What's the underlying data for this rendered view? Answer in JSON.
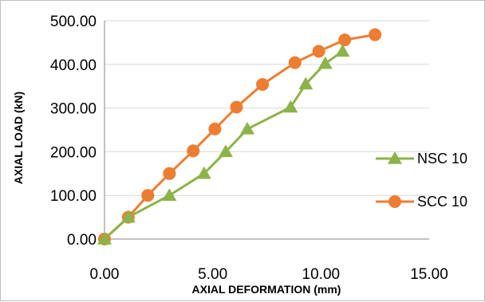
{
  "chart_data": {
    "type": "line",
    "title": "",
    "xlabel": "AXIAL DEFORMATION (mm)",
    "ylabel": "AXIAL LOAD (kN)",
    "xlim": [
      0,
      15
    ],
    "ylim": [
      0,
      500
    ],
    "x_ticks": [
      "0.00",
      "5.00",
      "10.00",
      "15.00"
    ],
    "y_ticks": [
      "0.00",
      "100.00",
      "200.00",
      "300.00",
      "400.00",
      "500.00"
    ],
    "grid": "horizontal",
    "legend": "right",
    "series": [
      {
        "name": "NSC 10",
        "color": "#8cb34a",
        "marker": "triangle",
        "points": [
          [
            0,
            0
          ],
          [
            1.1,
            50
          ],
          [
            3.0,
            100
          ],
          [
            4.6,
            150
          ],
          [
            5.6,
            200
          ],
          [
            6.6,
            252
          ],
          [
            8.6,
            302
          ],
          [
            9.3,
            355
          ],
          [
            10.2,
            402
          ],
          [
            11.0,
            430
          ]
        ]
      },
      {
        "name": "SCC 10",
        "color": "#ed7d31",
        "marker": "circle",
        "points": [
          [
            0,
            0
          ],
          [
            1.1,
            50
          ],
          [
            2.0,
            100
          ],
          [
            3.0,
            150
          ],
          [
            4.1,
            202
          ],
          [
            5.1,
            252
          ],
          [
            6.1,
            302
          ],
          [
            7.3,
            354
          ],
          [
            8.8,
            404
          ],
          [
            9.9,
            430
          ],
          [
            11.1,
            456
          ],
          [
            12.5,
            468
          ]
        ]
      }
    ]
  }
}
